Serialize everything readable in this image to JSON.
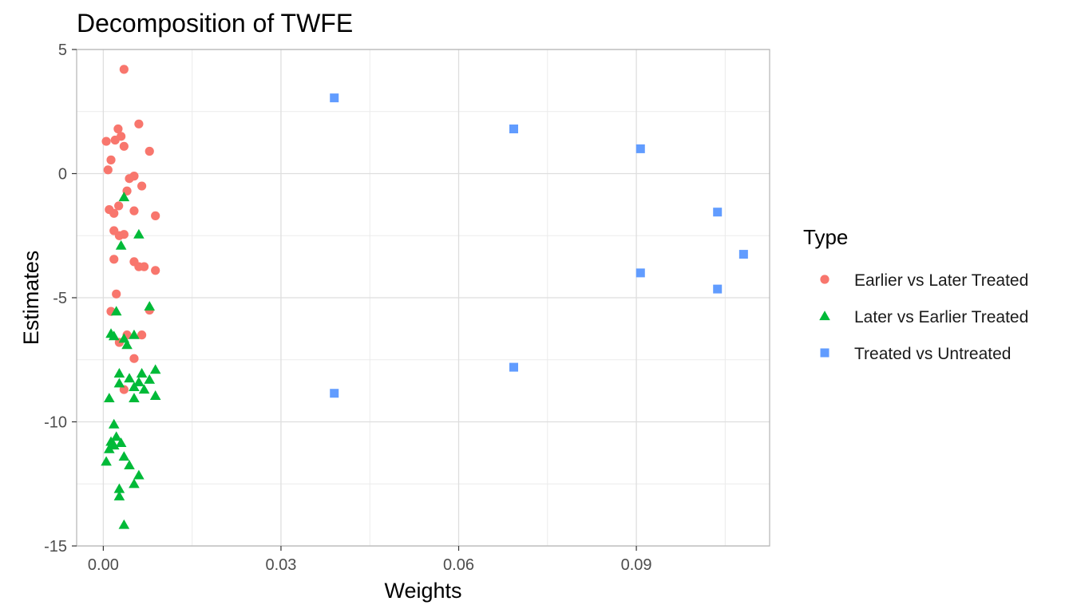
{
  "chart_data": {
    "type": "scatter",
    "title": "Decomposition of TWFE",
    "xlabel": "Weights",
    "ylabel": "Estimates",
    "xlim": [
      -0.0045,
      0.1125
    ],
    "ylim": [
      -15,
      5
    ],
    "x_ticks": [
      {
        "value": 0.0,
        "label": "0.00"
      },
      {
        "value": 0.03,
        "label": "0.03"
      },
      {
        "value": 0.06,
        "label": "0.06"
      },
      {
        "value": 0.09,
        "label": "0.09"
      }
    ],
    "y_ticks": [
      {
        "value": 5,
        "label": "5"
      },
      {
        "value": 0,
        "label": "0"
      },
      {
        "value": -5,
        "label": "-5"
      },
      {
        "value": -10,
        "label": "-10"
      },
      {
        "value": -15,
        "label": "-15"
      }
    ],
    "grid": true,
    "legend": {
      "title": "Type",
      "position": "right"
    },
    "series": [
      {
        "name": "Earlier vs Later Treated",
        "color": "#F8766D",
        "shape": "circle",
        "points": [
          [
            0.0035,
            4.2
          ],
          [
            0.0025,
            1.8
          ],
          [
            0.006,
            2.0
          ],
          [
            0.0005,
            1.3
          ],
          [
            0.002,
            1.35
          ],
          [
            0.003,
            1.5
          ],
          [
            0.0035,
            1.1
          ],
          [
            0.0078,
            0.9
          ],
          [
            0.0013,
            0.55
          ],
          [
            0.0008,
            0.15
          ],
          [
            0.0052,
            -0.1
          ],
          [
            0.0044,
            -0.2
          ],
          [
            0.0065,
            -0.5
          ],
          [
            0.004,
            -0.7
          ],
          [
            0.0026,
            -1.3
          ],
          [
            0.001,
            -1.45
          ],
          [
            0.0052,
            -1.5
          ],
          [
            0.0018,
            -1.6
          ],
          [
            0.0088,
            -1.7
          ],
          [
            0.0018,
            -2.3
          ],
          [
            0.0035,
            -2.45
          ],
          [
            0.0027,
            -2.5
          ],
          [
            0.0018,
            -3.45
          ],
          [
            0.0052,
            -3.55
          ],
          [
            0.006,
            -3.75
          ],
          [
            0.0069,
            -3.75
          ],
          [
            0.0088,
            -3.9
          ],
          [
            0.0022,
            -4.85
          ],
          [
            0.0013,
            -5.55
          ],
          [
            0.0078,
            -5.5
          ],
          [
            0.004,
            -6.5
          ],
          [
            0.0065,
            -6.5
          ],
          [
            0.0027,
            -6.8
          ],
          [
            0.0052,
            -7.45
          ],
          [
            0.0035,
            -8.7
          ]
        ]
      },
      {
        "name": "Later vs Earlier Treated",
        "color": "#00BA38",
        "shape": "triangle",
        "points": [
          [
            0.0035,
            -0.95
          ],
          [
            0.006,
            -2.45
          ],
          [
            0.003,
            -2.9
          ],
          [
            0.0078,
            -5.35
          ],
          [
            0.0022,
            -5.55
          ],
          [
            0.0013,
            -6.45
          ],
          [
            0.0018,
            -6.55
          ],
          [
            0.0052,
            -6.5
          ],
          [
            0.0035,
            -6.65
          ],
          [
            0.004,
            -6.9
          ],
          [
            0.0088,
            -7.9
          ],
          [
            0.0027,
            -8.05
          ],
          [
            0.0065,
            -8.05
          ],
          [
            0.0078,
            -8.3
          ],
          [
            0.0044,
            -8.25
          ],
          [
            0.006,
            -8.4
          ],
          [
            0.0027,
            -8.45
          ],
          [
            0.0052,
            -8.6
          ],
          [
            0.0069,
            -8.7
          ],
          [
            0.001,
            -9.05
          ],
          [
            0.0052,
            -9.05
          ],
          [
            0.0088,
            -8.95
          ],
          [
            0.0018,
            -10.1
          ],
          [
            0.0022,
            -10.6
          ],
          [
            0.0013,
            -10.8
          ],
          [
            0.003,
            -10.85
          ],
          [
            0.0018,
            -10.95
          ],
          [
            0.001,
            -11.1
          ],
          [
            0.0035,
            -11.4
          ],
          [
            0.0005,
            -11.6
          ],
          [
            0.0044,
            -11.75
          ],
          [
            0.006,
            -12.15
          ],
          [
            0.0052,
            -12.5
          ],
          [
            0.0027,
            -12.7
          ],
          [
            0.0027,
            -13.0
          ],
          [
            0.0035,
            -14.15
          ]
        ]
      },
      {
        "name": "Treated vs Untreated",
        "color": "#619CFF",
        "shape": "square",
        "points": [
          [
            0.039,
            3.05
          ],
          [
            0.0693,
            1.8
          ],
          [
            0.0907,
            1.0
          ],
          [
            0.1037,
            -1.55
          ],
          [
            0.1081,
            -3.25
          ],
          [
            0.0907,
            -4.0
          ],
          [
            0.1037,
            -4.65
          ],
          [
            0.0693,
            -7.8
          ],
          [
            0.039,
            -8.85
          ]
        ]
      }
    ]
  }
}
